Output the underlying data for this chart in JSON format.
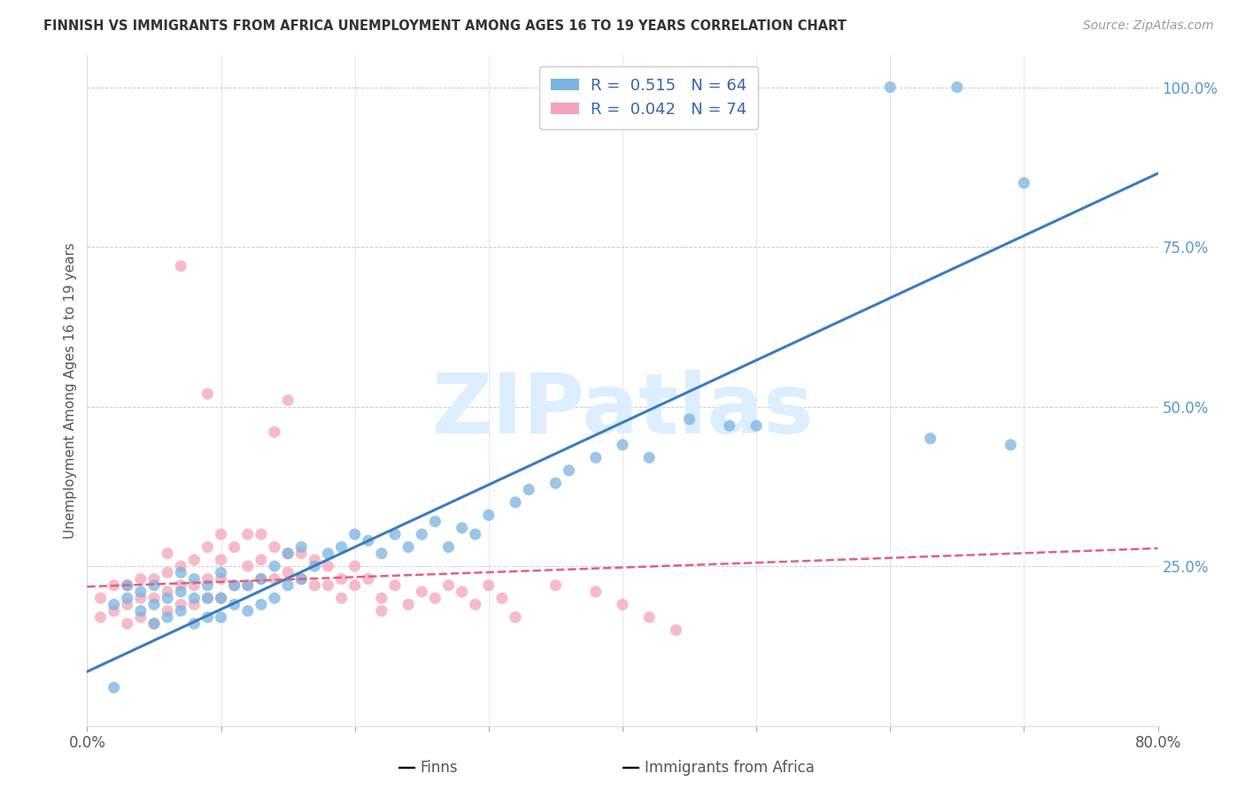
{
  "title": "FINNISH VS IMMIGRANTS FROM AFRICA UNEMPLOYMENT AMONG AGES 16 TO 19 YEARS CORRELATION CHART",
  "source": "Source: ZipAtlas.com",
  "ylabel": "Unemployment Among Ages 16 to 19 years",
  "xlim": [
    0.0,
    0.8
  ],
  "ylim": [
    0.0,
    1.05
  ],
  "legend_r_finns": "R =  0.515",
  "legend_n_finns": "N = 64",
  "legend_r_africa": "R =  0.042",
  "legend_n_africa": "N = 74",
  "blue_color": "#7ab4e0",
  "pink_color": "#f4a4b8",
  "trend_blue": "#3a7bbf",
  "trend_pink": "#e06080",
  "background_color": "#ffffff",
  "grid_color": "#cccccc",
  "finns_x": [
    0.02,
    0.03,
    0.03,
    0.04,
    0.04,
    0.05,
    0.05,
    0.05,
    0.06,
    0.06,
    0.07,
    0.07,
    0.07,
    0.08,
    0.08,
    0.08,
    0.09,
    0.09,
    0.09,
    0.1,
    0.1,
    0.1,
    0.11,
    0.11,
    0.12,
    0.12,
    0.13,
    0.13,
    0.14,
    0.14,
    0.15,
    0.15,
    0.16,
    0.16,
    0.17,
    0.18,
    0.19,
    0.2,
    0.21,
    0.22,
    0.23,
    0.24,
    0.25,
    0.26,
    0.27,
    0.28,
    0.29,
    0.3,
    0.32,
    0.33,
    0.35,
    0.36,
    0.38,
    0.4,
    0.42,
    0.45,
    0.48,
    0.5,
    0.6,
    0.65,
    0.02,
    0.7,
    0.69,
    0.63
  ],
  "finns_y": [
    0.19,
    0.2,
    0.22,
    0.18,
    0.21,
    0.16,
    0.19,
    0.22,
    0.17,
    0.2,
    0.18,
    0.21,
    0.24,
    0.16,
    0.2,
    0.23,
    0.17,
    0.2,
    0.22,
    0.17,
    0.2,
    0.24,
    0.19,
    0.22,
    0.18,
    0.22,
    0.19,
    0.23,
    0.2,
    0.25,
    0.22,
    0.27,
    0.23,
    0.28,
    0.25,
    0.27,
    0.28,
    0.3,
    0.29,
    0.27,
    0.3,
    0.28,
    0.3,
    0.32,
    0.28,
    0.31,
    0.3,
    0.33,
    0.35,
    0.37,
    0.38,
    0.4,
    0.42,
    0.44,
    0.42,
    0.48,
    0.47,
    0.47,
    1.0,
    1.0,
    0.06,
    0.85,
    0.44,
    0.45
  ],
  "africa_x": [
    0.01,
    0.01,
    0.02,
    0.02,
    0.03,
    0.03,
    0.03,
    0.04,
    0.04,
    0.04,
    0.05,
    0.05,
    0.05,
    0.06,
    0.06,
    0.06,
    0.06,
    0.07,
    0.07,
    0.07,
    0.08,
    0.08,
    0.08,
    0.09,
    0.09,
    0.09,
    0.1,
    0.1,
    0.1,
    0.1,
    0.11,
    0.11,
    0.12,
    0.12,
    0.12,
    0.13,
    0.13,
    0.13,
    0.14,
    0.14,
    0.15,
    0.15,
    0.16,
    0.16,
    0.17,
    0.17,
    0.18,
    0.18,
    0.19,
    0.19,
    0.2,
    0.2,
    0.21,
    0.22,
    0.23,
    0.24,
    0.25,
    0.26,
    0.27,
    0.28,
    0.29,
    0.3,
    0.31,
    0.32,
    0.35,
    0.38,
    0.4,
    0.42,
    0.44,
    0.14,
    0.15,
    0.09,
    0.07,
    0.22
  ],
  "africa_y": [
    0.17,
    0.2,
    0.18,
    0.22,
    0.16,
    0.19,
    0.22,
    0.17,
    0.2,
    0.23,
    0.16,
    0.2,
    0.23,
    0.18,
    0.21,
    0.24,
    0.27,
    0.19,
    0.22,
    0.25,
    0.19,
    0.22,
    0.26,
    0.2,
    0.23,
    0.28,
    0.2,
    0.23,
    0.26,
    0.3,
    0.22,
    0.28,
    0.22,
    0.25,
    0.3,
    0.23,
    0.26,
    0.3,
    0.23,
    0.28,
    0.24,
    0.27,
    0.23,
    0.27,
    0.22,
    0.26,
    0.22,
    0.25,
    0.2,
    0.23,
    0.22,
    0.25,
    0.23,
    0.2,
    0.22,
    0.19,
    0.21,
    0.2,
    0.22,
    0.21,
    0.19,
    0.22,
    0.2,
    0.17,
    0.22,
    0.21,
    0.19,
    0.17,
    0.15,
    0.46,
    0.51,
    0.52,
    0.72,
    0.18
  ],
  "watermark": "ZIPatlas",
  "watermark_color": "#ddeeff",
  "watermark_fontsize": 68
}
